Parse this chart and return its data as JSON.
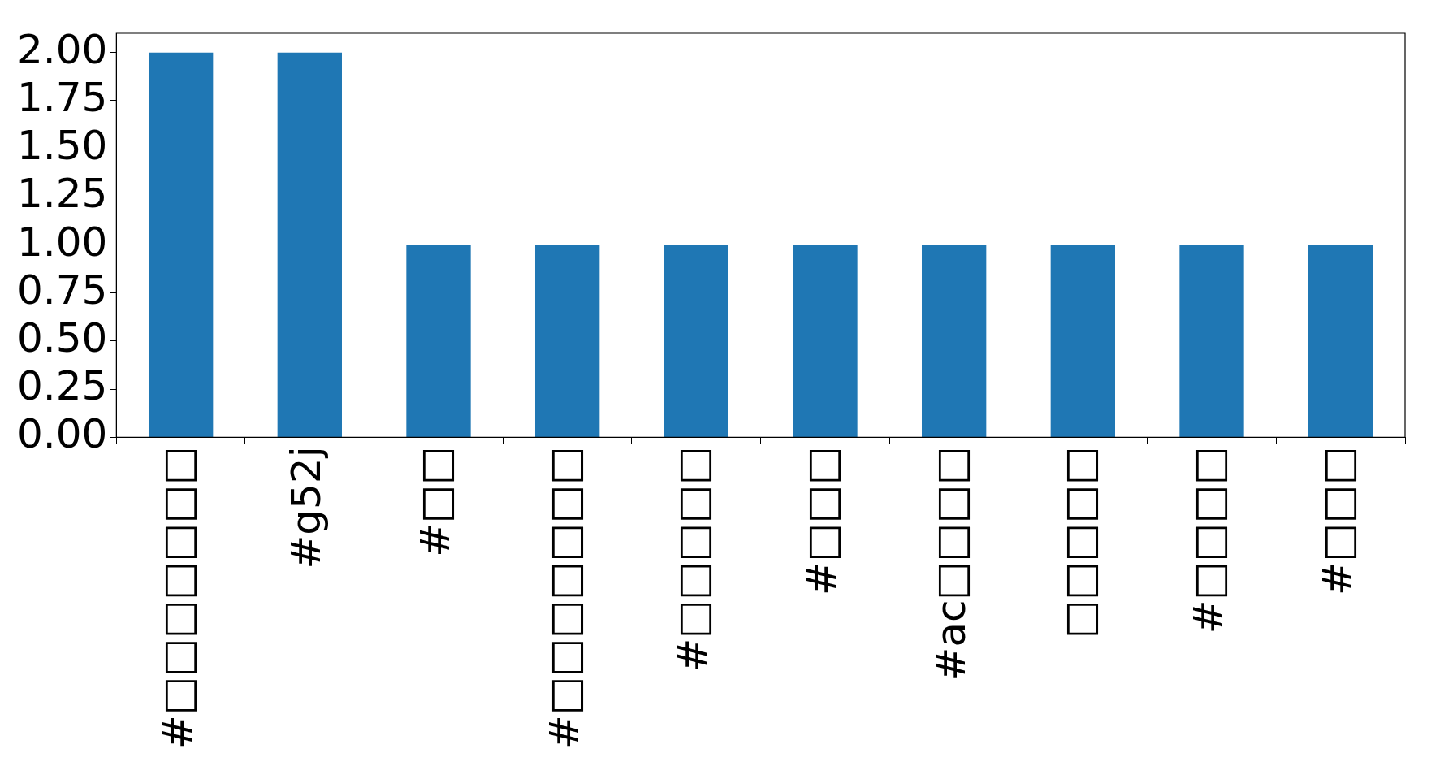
{
  "chart_data": {
    "type": "bar",
    "categories": [
      "#□□□□□□□",
      "#g52j",
      "#□□",
      "#□□□□□□□",
      "#□□□□□",
      "#□□□",
      "#ac□□□□",
      "□□□□□",
      "#□□□□",
      "#□□□"
    ],
    "values": [
      2,
      2,
      1,
      1,
      1,
      1,
      1,
      1,
      1,
      1
    ],
    "color": "#1f77b4",
    "ylim": [
      0,
      2.1
    ],
    "yticks": [
      {
        "value": 0,
        "label": "0.00"
      },
      {
        "value": 0.25,
        "label": "0.25"
      },
      {
        "value": 0.5,
        "label": "0.50"
      },
      {
        "value": 0.75,
        "label": "0.75"
      },
      {
        "value": 1,
        "label": "1.00"
      },
      {
        "value": 1.25,
        "label": "1.25"
      },
      {
        "value": 1.5,
        "label": "1.50"
      },
      {
        "value": 1.75,
        "label": "1.75"
      },
      {
        "value": 2,
        "label": "2.00"
      }
    ],
    "grid": false,
    "legend": false
  }
}
